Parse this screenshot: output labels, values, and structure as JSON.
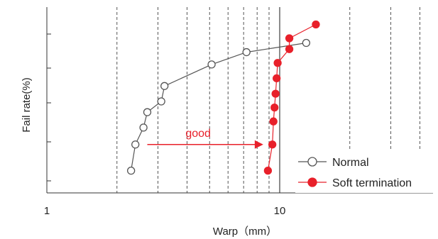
{
  "chart_data": {
    "type": "scatter",
    "xscale": "log",
    "xlim": [
      1,
      50
    ],
    "x_ticks": [
      {
        "value": 1,
        "label": "1"
      },
      {
        "value": 10,
        "label": "10"
      }
    ],
    "x_minor_gridlines": [
      2,
      3,
      4,
      5,
      6,
      7,
      8,
      9,
      20,
      30,
      40
    ],
    "reference_line_x": 10,
    "xlabel": "Warp（mm）",
    "ylabel": "Fail rate(%)",
    "y_ticks": 5,
    "ylim": [
      0,
      100
    ],
    "series": [
      {
        "name": "Normal",
        "color": "#555555",
        "marker": "open-circle",
        "points": [
          {
            "x": 2.3,
            "y": 8
          },
          {
            "x": 2.4,
            "y": 25
          },
          {
            "x": 2.6,
            "y": 36
          },
          {
            "x": 2.7,
            "y": 46
          },
          {
            "x": 3.1,
            "y": 53
          },
          {
            "x": 3.2,
            "y": 63
          },
          {
            "x": 5.1,
            "y": 77
          },
          {
            "x": 7.2,
            "y": 85
          },
          {
            "x": 13.0,
            "y": 91
          }
        ]
      },
      {
        "name": "Soft termination",
        "color": "#e8202a",
        "marker": "filled-circle",
        "points": [
          {
            "x": 8.9,
            "y": 8
          },
          {
            "x": 9.3,
            "y": 25
          },
          {
            "x": 9.4,
            "y": 40
          },
          {
            "x": 9.5,
            "y": 49
          },
          {
            "x": 9.6,
            "y": 58
          },
          {
            "x": 9.7,
            "y": 68
          },
          {
            "x": 9.8,
            "y": 78
          },
          {
            "x": 11.0,
            "y": 87
          },
          {
            "x": 11.0,
            "y": 94
          },
          {
            "x": 14.3,
            "y": 103
          }
        ]
      }
    ],
    "annotation": {
      "text": "good",
      "color": "#e8202a",
      "arrow_from": {
        "x": 2.7,
        "y": 25
      },
      "arrow_to": {
        "x": 8.5,
        "y": 25
      }
    },
    "legend": {
      "position": "bottom-right"
    },
    "grid": true
  }
}
